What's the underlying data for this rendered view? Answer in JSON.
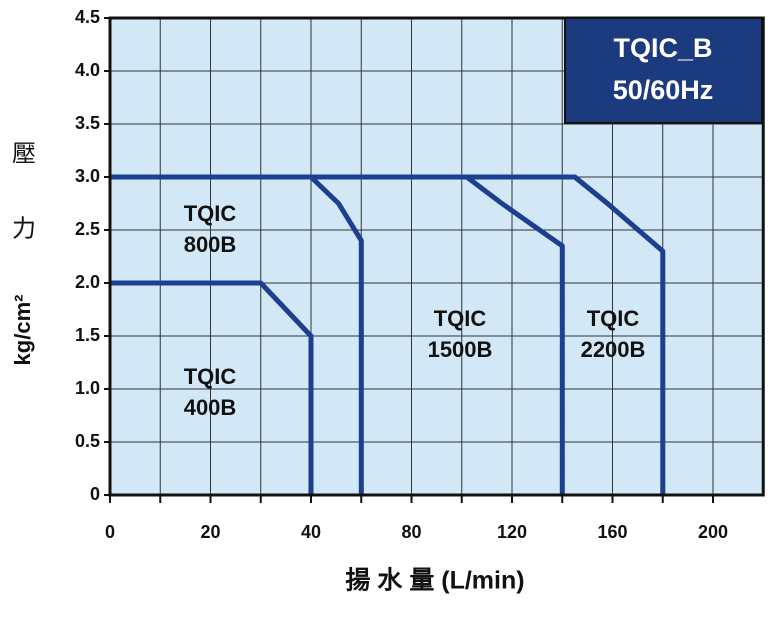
{
  "chart_data": {
    "type": "line",
    "title": [
      "TQIC_B",
      "50/60Hz"
    ],
    "y_label_chars": [
      "壓",
      "力"
    ],
    "y_label": "kg/cm²",
    "x_label": "揚 水 量 (L/min)",
    "xlim": [
      0,
      220
    ],
    "xticks": [
      0,
      20,
      40,
      80,
      120,
      160,
      200
    ],
    "ylim": [
      0,
      4.5
    ],
    "yticks": [
      {
        "value": 0,
        "label": "0"
      },
      {
        "value": 0.5,
        "label": "0.5"
      },
      {
        "value": 1,
        "label": "1.0"
      },
      {
        "value": 1.5,
        "label": "1.5"
      },
      {
        "value": 2,
        "label": "2.0"
      },
      {
        "value": 2.5,
        "label": "2.5"
      },
      {
        "value": 3,
        "label": "3.0"
      },
      {
        "value": 3.5,
        "label": "3.5"
      },
      {
        "value": 4,
        "label": "4.0"
      },
      {
        "value": 4.5,
        "label": "4.5"
      }
    ],
    "grid": true,
    "series": [
      {
        "name": "TQIC 400B",
        "label_lines": [
          "TQIC",
          "400B"
        ],
        "color": "#1d3f8f",
        "x": [
          0,
          30,
          40,
          40
        ],
        "values": [
          2.0,
          2.0,
          1.5,
          0
        ]
      },
      {
        "name": "TQIC 800B",
        "label_lines": [
          "TQIC",
          "800B"
        ],
        "color": "#1d3f8f",
        "x": [
          0,
          40,
          51,
          60,
          60
        ],
        "values": [
          3.0,
          3.0,
          2.75,
          2.4,
          0
        ]
      },
      {
        "name": "TQIC 1500B",
        "label_lines": [
          "TQIC",
          "1500B"
        ],
        "color": "#1d3f8f",
        "x": [
          0,
          102,
          116,
          140,
          140
        ],
        "values": [
          3.0,
          3.0,
          2.75,
          2.35,
          0
        ]
      },
      {
        "name": "TQIC 2200B",
        "label_lines": [
          "TQIC",
          "2200B"
        ],
        "color": "#1d3f8f",
        "x": [
          0,
          145,
          158,
          180,
          180
        ],
        "values": [
          3.0,
          3.0,
          2.75,
          2.3,
          0
        ]
      }
    ]
  }
}
